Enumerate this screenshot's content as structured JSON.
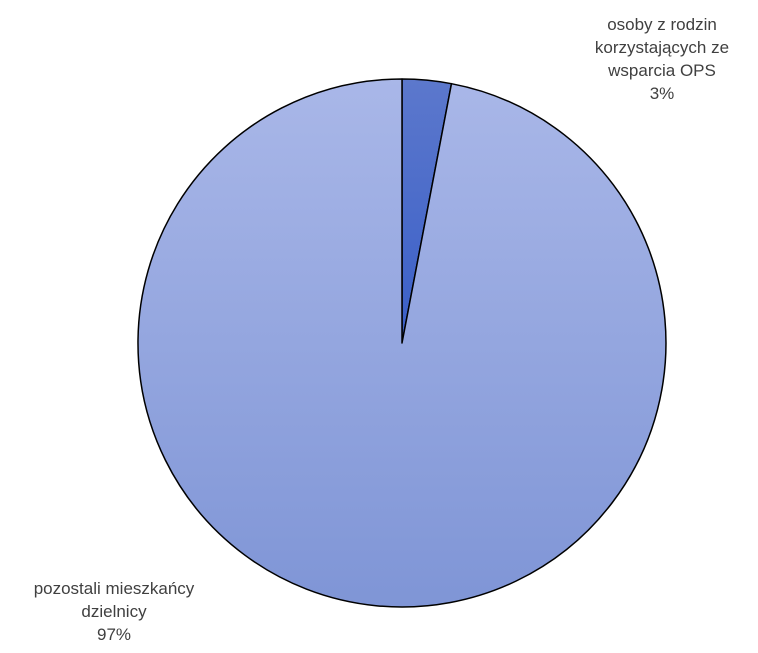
{
  "chart_data": {
    "type": "pie",
    "title": "",
    "slices": [
      {
        "label_lines": [
          "osoby z rodzin",
          "korzystających ze",
          "wsparcia OPS"
        ],
        "percent_label": "3%",
        "value": 3,
        "color_top": "#5c78cc",
        "color_bottom": "#3a5fc8"
      },
      {
        "label_lines": [
          "pozostali mieszkańcy",
          "dzielnicy"
        ],
        "percent_label": "97%",
        "value": 97,
        "color_top": "#a9b7e8",
        "color_bottom": "#7f95d6"
      }
    ],
    "start_angle_deg": 0,
    "direction": "clockwise",
    "legend": "none",
    "label_positions": [
      "top-right",
      "bottom-left"
    ]
  }
}
